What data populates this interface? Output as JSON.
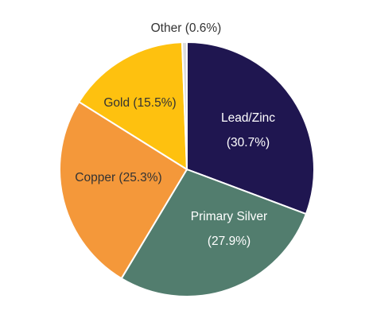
{
  "chart_data": {
    "type": "pie",
    "start_angle_deg": 0,
    "direction": "clockwise",
    "slices": [
      {
        "name": "Lead/Zinc",
        "value": 30.7,
        "value_label": "(30.7%)",
        "color": "#1f1650",
        "label_color": "#ffffff"
      },
      {
        "name": "Primary Silver",
        "value": 27.9,
        "value_label": "(27.9%)",
        "color": "#527d6e",
        "label_color": "#ffffff"
      },
      {
        "name": "Copper",
        "value": 25.3,
        "value_label": "(25.3%)",
        "color": "#f4983a",
        "label_color": "#333333"
      },
      {
        "name": "Gold",
        "value": 15.5,
        "value_label": "(15.5%)",
        "color": "#fec10f",
        "label_color": "#333333"
      },
      {
        "name": "Other",
        "value": 0.6,
        "value_label": "(0.6%)",
        "color": "#dcdcdc",
        "label_color": "#333333"
      }
    ],
    "labels": [
      {
        "slice": "Lead/Zinc",
        "lines": [
          "Lead/Zinc",
          "(30.7%)"
        ]
      },
      {
        "slice": "Primary Silver",
        "lines": [
          "Primary Silver",
          "(27.9%)"
        ]
      },
      {
        "slice": "Copper",
        "lines": [
          "Copper (25.3%)"
        ]
      },
      {
        "slice": "Gold",
        "lines": [
          "Gold (15.5%)"
        ]
      },
      {
        "slice": "Other",
        "lines": [
          "Other (0.6%)"
        ]
      }
    ],
    "title": "",
    "legend": "none"
  }
}
